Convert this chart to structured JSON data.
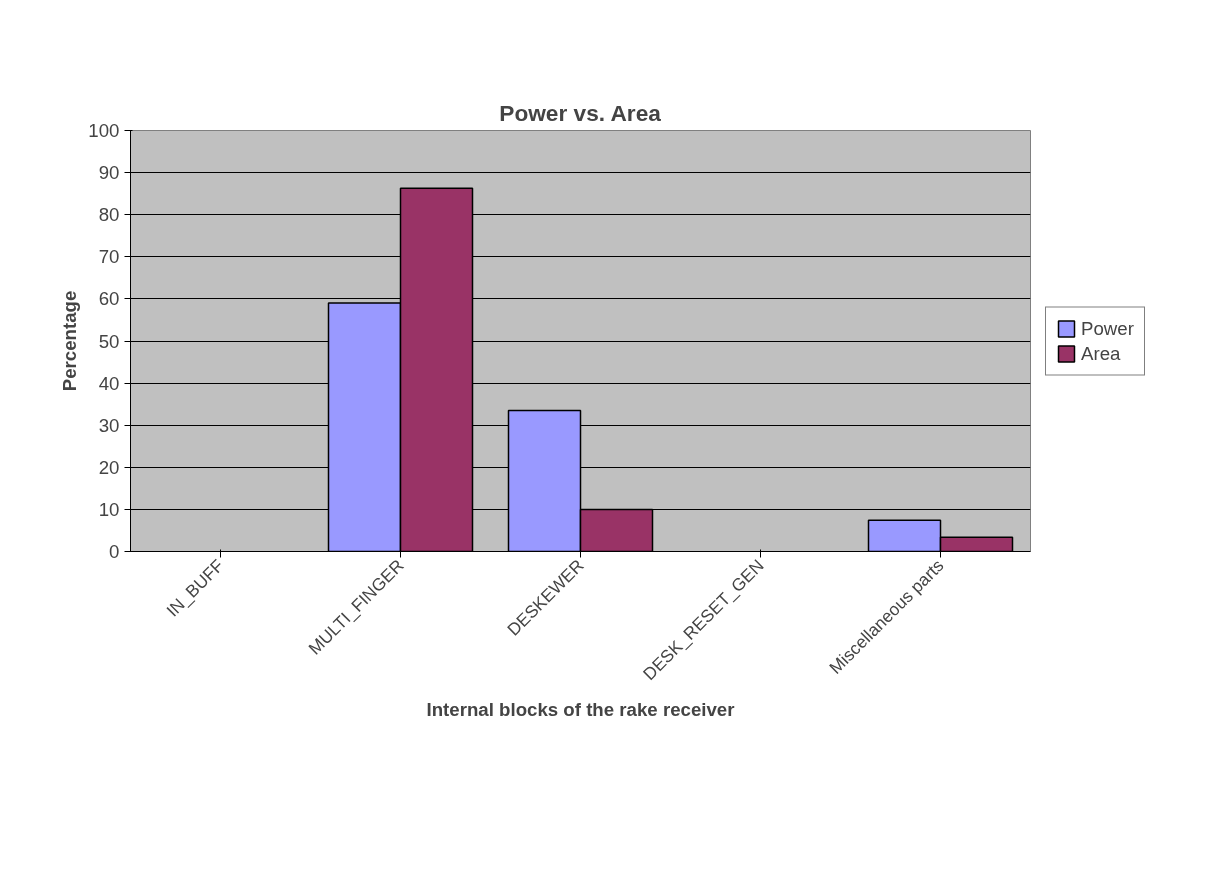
{
  "chart_data": {
    "type": "bar",
    "title": "Power vs. Area",
    "xlabel": "Internal blocks of the rake receiver",
    "ylabel": "Percentage",
    "categories": [
      "IN_BUFF",
      "MULTI_FINGER",
      "DESKEWER",
      "DESK_RESET_GEN",
      "Miscellaneous parts"
    ],
    "series": [
      {
        "name": "Power",
        "color": "#9999ff",
        "values": [
          null,
          59,
          33.5,
          null,
          7.4
        ]
      },
      {
        "name": "Area",
        "color": "#993366",
        "values": [
          null,
          86.3,
          10,
          null,
          3.4
        ]
      }
    ],
    "ylim": [
      0,
      100
    ],
    "yticks": [
      0,
      10,
      20,
      30,
      40,
      50,
      60,
      70,
      80,
      90,
      100
    ],
    "grid": "y",
    "legend": "right"
  }
}
